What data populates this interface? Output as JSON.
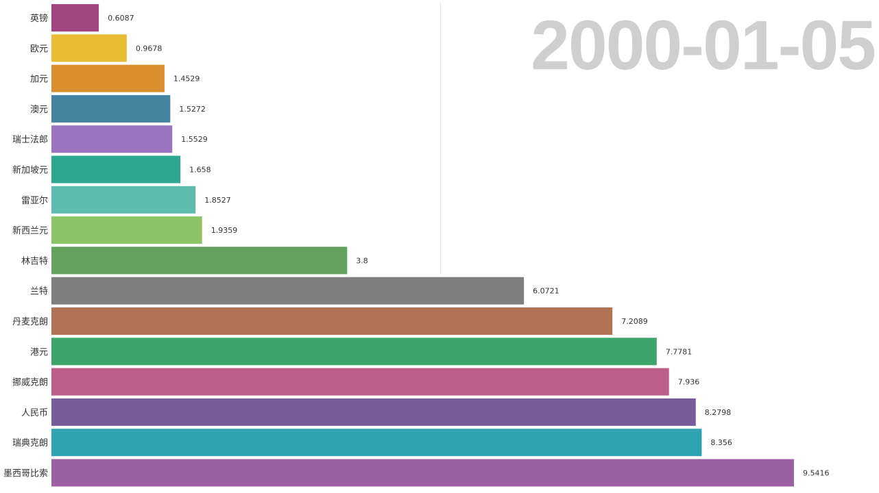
{
  "chart_data": {
    "type": "bar",
    "orientation": "horizontal",
    "title": "",
    "date_label": "2000-01-05",
    "xlim": [
      0,
      10
    ],
    "gridlines": [
      5
    ],
    "grid": true,
    "x_tick_labels_shown": false,
    "categories": [
      "英镑",
      "欧元",
      "加元",
      "澳元",
      "瑞士法郎",
      "新加坡元",
      "雷亚尔",
      "新西兰元",
      "林吉特",
      "兰特",
      "丹麦克朗",
      "港元",
      "挪威克朗",
      "人民币",
      "瑞典克朗",
      "墨西哥比索"
    ],
    "values": [
      0.6087,
      0.9678,
      1.4529,
      1.5272,
      1.5529,
      1.658,
      1.8527,
      1.9359,
      3.8,
      6.0721,
      7.2089,
      7.7781,
      7.936,
      8.2798,
      8.356,
      9.5416
    ],
    "value_labels": [
      "0.6087",
      "0.9678",
      "1.4529",
      "1.5272",
      "1.5529",
      "1.658",
      "1.8527",
      "1.9359",
      "3.8",
      "6.0721",
      "7.2089",
      "7.7781",
      "7.936",
      "8.2798",
      "8.356",
      "9.5416"
    ],
    "colors": [
      "#a0457f",
      "#e8bc33",
      "#dc8f2f",
      "#44839f",
      "#9b72bf",
      "#2ca88f",
      "#5dbcaf",
      "#8dc465",
      "#62a25c",
      "#7f7f7f",
      "#b27354",
      "#3da56c",
      "#bd5f8a",
      "#775c9c",
      "#2ea3b2",
      "#9c5fa1"
    ]
  }
}
